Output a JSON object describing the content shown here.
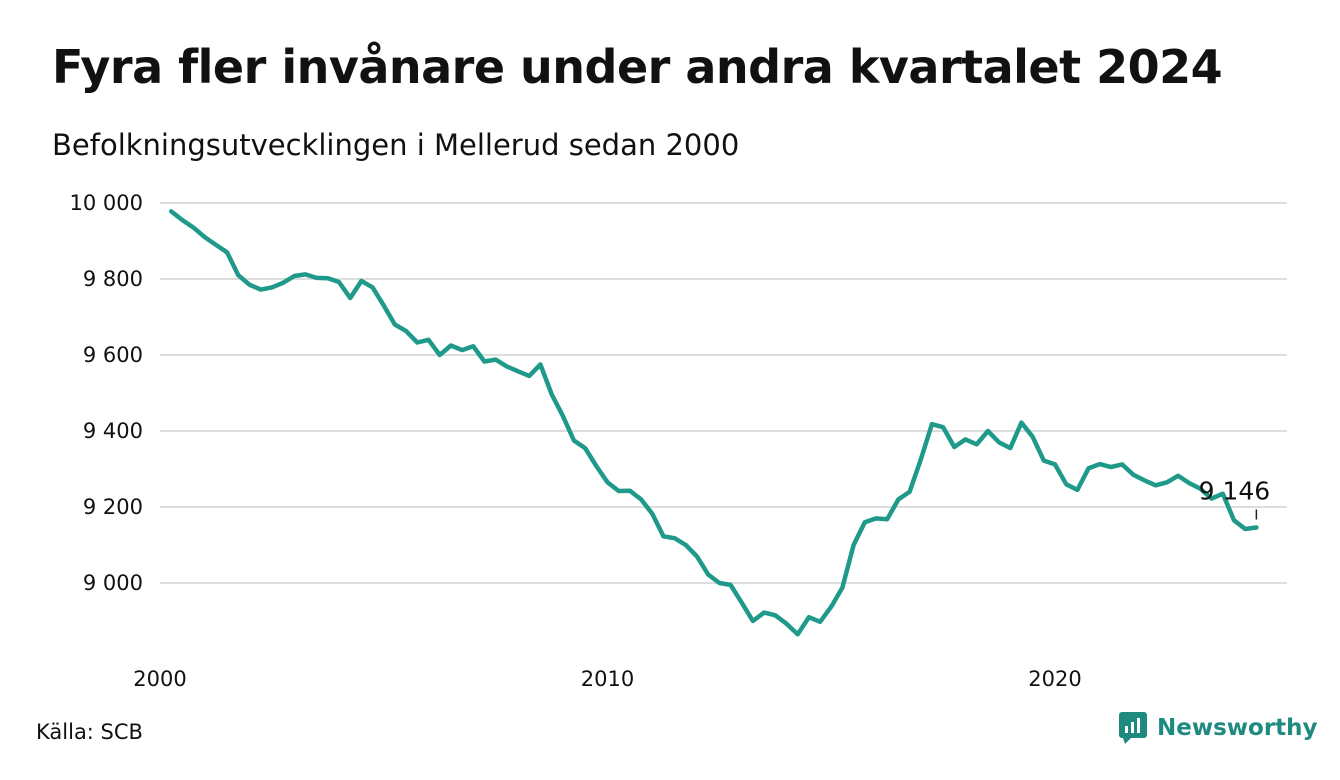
{
  "title": "Fyra fler invånare under andra kvartalet 2024",
  "subtitle": "Befolkningsutvecklingen i Mellerud sedan 2000",
  "source": "Källa: SCB",
  "brand": {
    "name": "Newsworthy",
    "icon": "newsworthy-logo-icon"
  },
  "colors": {
    "line": "#1f9a8a",
    "grid": "#dddddd",
    "brand": "#1f8a80"
  },
  "chart_data": {
    "type": "line",
    "title": "Fyra fler invånare under andra kvartalet 2024",
    "subtitle": "Befolkningsutvecklingen i Mellerud sedan 2000",
    "xlabel": "",
    "ylabel": "",
    "xlim": [
      2000,
      2025.25
    ],
    "ylim": [
      8850,
      10000
    ],
    "y_ticks": [
      {
        "value": 10000,
        "label": "10 000"
      },
      {
        "value": 9800,
        "label": "9 800"
      },
      {
        "value": 9600,
        "label": "9 600"
      },
      {
        "value": 9400,
        "label": "9 400"
      },
      {
        "value": 9200,
        "label": "9 200"
      },
      {
        "value": 9000,
        "label": "9 000"
      }
    ],
    "x_ticks": [
      {
        "value": 2000,
        "label": "2000"
      },
      {
        "value": 2010,
        "label": "2010"
      },
      {
        "value": 2020,
        "label": "2020"
      }
    ],
    "grid": true,
    "annotation": {
      "label": "9 146",
      "x": 2024.5,
      "y": 9146
    },
    "x": [
      2000.25,
      2000.5,
      2000.75,
      2001.0,
      2001.25,
      2001.5,
      2001.75,
      2002.0,
      2002.25,
      2002.5,
      2002.75,
      2003.0,
      2003.25,
      2003.5,
      2003.75,
      2004.0,
      2004.25,
      2004.5,
      2004.75,
      2005.0,
      2005.25,
      2005.5,
      2005.75,
      2006.0,
      2006.25,
      2006.5,
      2006.75,
      2007.0,
      2007.25,
      2007.5,
      2007.75,
      2008.0,
      2008.25,
      2008.5,
      2008.75,
      2009.0,
      2009.25,
      2009.5,
      2009.75,
      2010.0,
      2010.25,
      2010.5,
      2010.75,
      2011.0,
      2011.25,
      2011.5,
      2011.75,
      2012.0,
      2012.25,
      2012.5,
      2012.75,
      2013.0,
      2013.25,
      2013.5,
      2013.75,
      2014.0,
      2014.25,
      2014.5,
      2014.75,
      2015.0,
      2015.25,
      2015.5,
      2015.75,
      2016.0,
      2016.25,
      2016.5,
      2016.75,
      2017.0,
      2017.25,
      2017.5,
      2017.75,
      2018.0,
      2018.25,
      2018.5,
      2018.75,
      2019.0,
      2019.25,
      2019.5,
      2019.75,
      2020.0,
      2020.25,
      2020.5,
      2020.75,
      2021.0,
      2021.25,
      2021.5,
      2021.75,
      2022.0,
      2022.25,
      2022.5,
      2022.75,
      2023.0,
      2023.25,
      2023.5,
      2023.75,
      2024.0,
      2024.25,
      2024.5
    ],
    "series": [
      {
        "values": [
          9978,
          9955,
          9935,
          9910,
          9890,
          9870,
          9810,
          9785,
          9772,
          9778,
          9790,
          9808,
          9812,
          9803,
          9802,
          9792,
          9750,
          9795,
          9778,
          9730,
          9680,
          9663,
          9633,
          9640,
          9600,
          9625,
          9613,
          9623,
          9583,
          9588,
          9570,
          9557,
          9545,
          9575,
          9497,
          9440,
          9375,
          9355,
          9308,
          9265,
          9242,
          9243,
          9220,
          9182,
          9123,
          9118,
          9100,
          9070,
          9022,
          9000,
          8995,
          8948,
          8900,
          8922,
          8915,
          8893,
          8865,
          8910,
          8898,
          8938,
          8988,
          9100,
          9160,
          9170,
          9168,
          9220,
          9240,
          9325,
          9418,
          9410,
          9358,
          9378,
          9365,
          9400,
          9370,
          9355,
          9422,
          9385,
          9322,
          9312,
          9260,
          9245,
          9302,
          9313,
          9305,
          9312,
          9285,
          9270,
          9257,
          9265,
          9282,
          9263,
          9248,
          9222,
          9235,
          9165,
          9142,
          9146
        ]
      }
    ]
  }
}
